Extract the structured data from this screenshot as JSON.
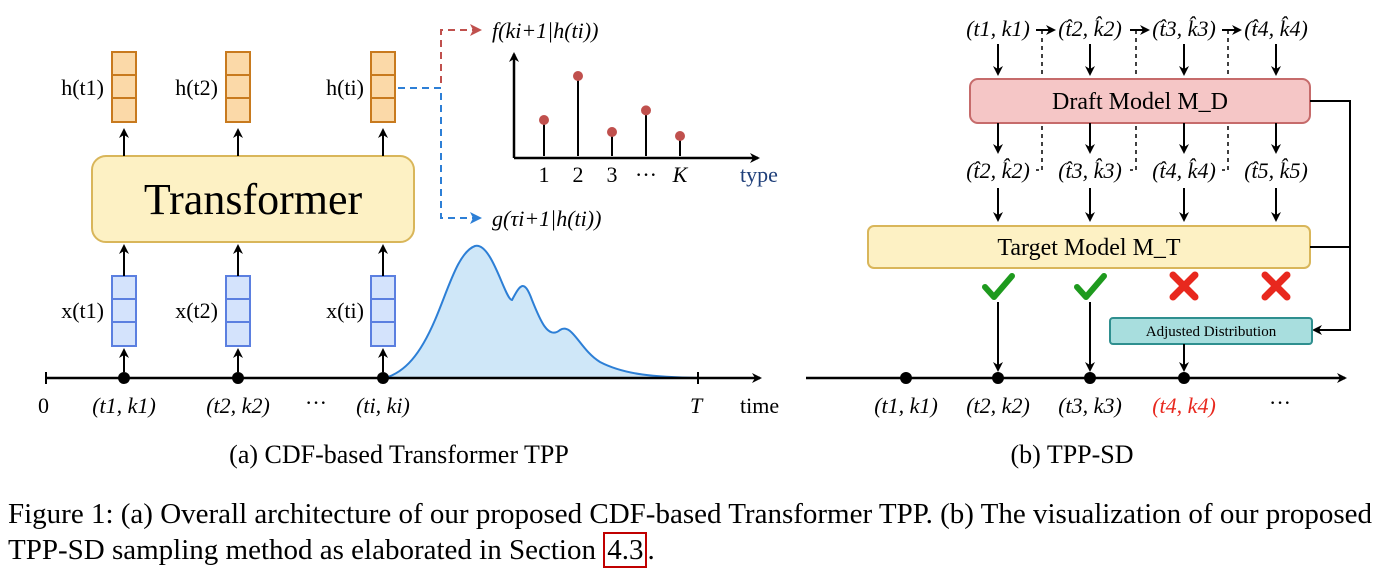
{
  "panel_a": {
    "caption": "(a) CDF-based Transformer TPP",
    "transformer_label": "Transformer",
    "hidden_labels": [
      "h(t1)",
      "h(t2)",
      "h(ti)"
    ],
    "input_labels": [
      "x(t1)",
      "x(t2)",
      "x(ti)"
    ],
    "event_labels": [
      "(t1, k1)",
      "(t2, k2)",
      "(ti, ki)"
    ],
    "dots": "···",
    "origin_label": "0",
    "end_label": "T",
    "time_label": "time",
    "f_label": "f(ki+1|h(ti))",
    "g_label": "g(τi+1|h(ti))",
    "type_axis_label": "type",
    "type_ticks": [
      "1",
      "2",
      "3",
      "···",
      "K"
    ],
    "type_probabilities_relative": [
      0.45,
      1.0,
      0.3,
      0.57,
      0.25
    ]
  },
  "panel_b": {
    "caption": "(b) TPP-SD",
    "draft_label": "Draft Model M_D",
    "target_label": "Target Model M_T",
    "adjusted_label": "Adjusted Distribution",
    "top_labels": [
      "(t1, k1)",
      "(t̂2, k̂2)",
      "(t̂3, k̂3)",
      "(t̂4, k̂4)"
    ],
    "draft_outputs": [
      "(t̂2, k̂2)",
      "(t̂3, k̂3)",
      "(t̂4, k̂4)",
      "(t̂5, k̂5)"
    ],
    "timeline_labels": [
      "(t1, k1)",
      "(t2, k2)",
      "(t3, k3)",
      "(t4, k4)",
      "···"
    ],
    "verdicts": [
      "accept",
      "accept",
      "reject",
      "reject"
    ]
  },
  "figure_caption": {
    "text": "Figure 1: (a) Overall architecture of our proposed CDF-based Transformer TPP. (b) The visualization of our proposed TPP-SD sampling method as elaborated in Section ",
    "ref": "4.3",
    "end": "."
  },
  "colors": {
    "orange_fill": "#fbd9a8",
    "orange_stroke": "#c87a1e",
    "blue_fill": "#d4e3fc",
    "blue_stroke": "#5b7fe0",
    "transformer_fill": "#fdf1c4",
    "transformer_stroke": "#d9b65a",
    "draft_fill": "#f5c6c6",
    "draft_stroke": "#c66b6b",
    "adjusted_fill": "#a8dede",
    "adjusted_stroke": "#2f8f8f",
    "density_fill": "#cfe7f8",
    "density_stroke": "#2d7fd6",
    "stem_dot": "#c0504d",
    "check": "#1e9a1e",
    "cross": "#e8281e",
    "f_arrow": "#c0504d",
    "g_arrow": "#2d7fd6"
  }
}
